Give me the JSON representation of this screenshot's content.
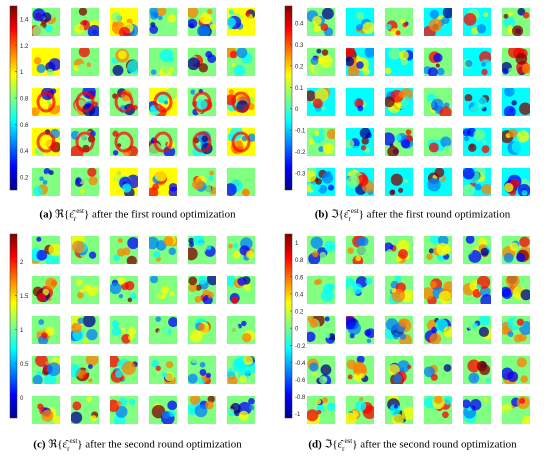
{
  "figure": {
    "panels": [
      {
        "id": "a",
        "label": "(a)",
        "part": "ℜ",
        "accent": "ε̂",
        "sub": "r",
        "sup": "est",
        "caption_tail": "after the first round optimization",
        "colorbar_ticks": [
          "1.4",
          "1.2",
          "1",
          "0.8",
          "0.6",
          "0.4",
          "0.2"
        ],
        "colorbar_range": [
          0.1,
          1.5
        ],
        "tick_values": [
          1.4,
          1.2,
          1,
          0.8,
          0.6,
          0.4,
          0.2
        ],
        "grid_rows": 5,
        "grid_cols": 6,
        "background_level": 0.55,
        "seed": 3
      },
      {
        "id": "b",
        "label": "(b)",
        "part": "ℑ",
        "accent": "ε̂",
        "sub": "r",
        "sup": "est",
        "caption_tail": "after the first round optimization",
        "colorbar_ticks": [
          "0.4",
          "0.3",
          "0.2",
          "0.1",
          "0",
          "-0.1",
          "-0.2",
          "-0.3"
        ],
        "colorbar_range": [
          -0.38,
          0.48
        ],
        "tick_values": [
          0.4,
          0.3,
          0.2,
          0.1,
          0,
          -0.1,
          -0.2,
          -0.3
        ],
        "grid_rows": 5,
        "grid_cols": 6,
        "background_level": 0.42,
        "seed": 11
      },
      {
        "id": "c",
        "label": "(c)",
        "part": "ℜ",
        "accent": "ε̂",
        "sub": "r",
        "sup": "est",
        "caption_tail": "after the second round optimization",
        "colorbar_ticks": [
          "2",
          "1.5",
          "1",
          "0.5",
          "0"
        ],
        "colorbar_range": [
          -0.3,
          2.4
        ],
        "tick_values": [
          2,
          1.5,
          1,
          0.5,
          0
        ],
        "grid_rows": 5,
        "grid_cols": 6,
        "background_level": 0.48,
        "seed": 23
      },
      {
        "id": "d",
        "label": "(d)",
        "part": "ℑ",
        "accent": "ε̂",
        "sub": "r",
        "sup": "est",
        "caption_tail": "after the second round optimization",
        "colorbar_ticks": [
          "1",
          "0.8",
          "0.6",
          "0.4",
          "0.2",
          "0",
          "-0.2",
          "-0.4",
          "-0.6",
          "-0.8",
          "-1"
        ],
        "colorbar_range": [
          -1.05,
          1.1
        ],
        "tick_values": [
          1,
          0.8,
          0.6,
          0.4,
          0.2,
          0,
          -0.2,
          -0.4,
          -0.6,
          -0.8,
          -1
        ],
        "grid_rows": 5,
        "grid_cols": 6,
        "background_level": 0.5,
        "seed": 41
      }
    ],
    "colormap": [
      "#00008f",
      "#0000ff",
      "#0080ff",
      "#00ffff",
      "#80ff80",
      "#ffff00",
      "#ff8000",
      "#ff0000",
      "#800000"
    ]
  }
}
